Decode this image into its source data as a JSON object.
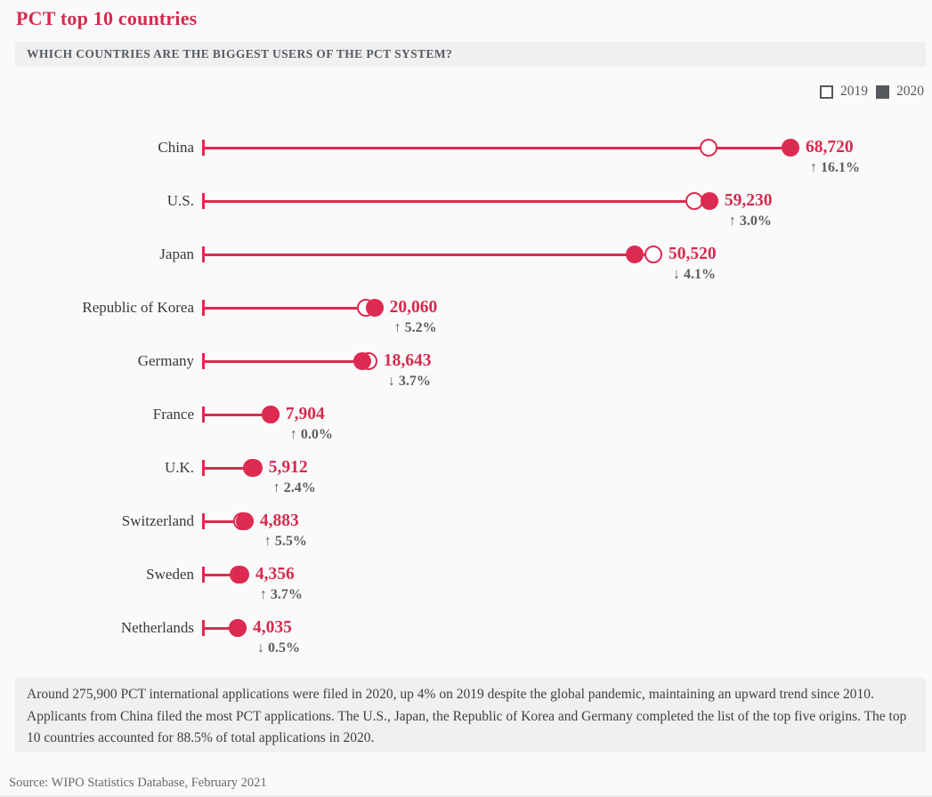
{
  "page": {
    "title": "PCT top 10 countries",
    "question": "WHICH COUNTRIES ARE THE BIGGEST USERS OF THE PCT SYSTEM?",
    "footnote": "Around 275,900 PCT international applications were filed in 2020, up 4% on 2019 despite the global pandemic, maintaining an upward trend since 2010. Applicants from China filed the most PCT applications. The U.S., Japan, the Republic of Korea and Germany completed the list of the top five origins. The top 10 countries accounted for 88.5% of total applications in 2020.",
    "source": "Source: WIPO Statistics Database, February 2021"
  },
  "legend": {
    "items": [
      {
        "label": "2019",
        "marker": "open-square"
      },
      {
        "label": "2020",
        "marker": "filled-square"
      }
    ]
  },
  "colors": {
    "accent_red": "#dd2a50",
    "value_red": "#d62a4e",
    "label_dark": "#39393b",
    "change_gray": "#5c5c60",
    "legend_gray": "#55585c",
    "panel_bg": "#f0f0f0",
    "page_bg": "#fafafa"
  },
  "chart_data": {
    "type": "dumbbell",
    "title": "PCT top 10 countries",
    "series": [
      "2019",
      "2020"
    ],
    "marker_2019": "open-circle",
    "marker_2020": "filled-circle",
    "xlim": [
      0,
      68720
    ],
    "grid": false,
    "legend_position": "top-right",
    "rows": [
      {
        "country": "China",
        "value_2020": 68720,
        "value_2019": 59190,
        "value_label": "68,720",
        "change_pct": 16.1,
        "change_label": "↑ 16.1%"
      },
      {
        "country": "U.S.",
        "value_2020": 59230,
        "value_2019": 57505,
        "value_label": "59,230",
        "change_pct": 3.0,
        "change_label": "↑ 3.0%"
      },
      {
        "country": "Japan",
        "value_2020": 50520,
        "value_2019": 52680,
        "value_label": "50,520",
        "change_pct": -4.1,
        "change_label": "↓ 4.1%"
      },
      {
        "country": "Republic of Korea",
        "value_2020": 20060,
        "value_2019": 19070,
        "value_label": "20,060",
        "change_pct": 5.2,
        "change_label": "↑ 5.2%"
      },
      {
        "country": "Germany",
        "value_2020": 18643,
        "value_2019": 19360,
        "value_label": "18,643",
        "change_pct": -3.7,
        "change_label": "↓ 3.7%"
      },
      {
        "country": "France",
        "value_2020": 7904,
        "value_2019": 7904,
        "value_label": "7,904",
        "change_pct": 0.0,
        "change_label": "↑ 0.0%"
      },
      {
        "country": "U.K.",
        "value_2020": 5912,
        "value_2019": 5773,
        "value_label": "5,912",
        "change_pct": 2.4,
        "change_label": "↑ 2.4%"
      },
      {
        "country": "Switzerland",
        "value_2020": 4883,
        "value_2019": 4629,
        "value_label": "4,883",
        "change_pct": 5.5,
        "change_label": "↑ 5.5%"
      },
      {
        "country": "Sweden",
        "value_2020": 4356,
        "value_2019": 4201,
        "value_label": "4,356",
        "change_pct": 3.7,
        "change_label": "↑ 3.7%"
      },
      {
        "country": "Netherlands",
        "value_2020": 4035,
        "value_2019": 4055,
        "value_label": "4,035",
        "change_pct": -0.5,
        "change_label": "↓ 0.5%"
      }
    ]
  }
}
